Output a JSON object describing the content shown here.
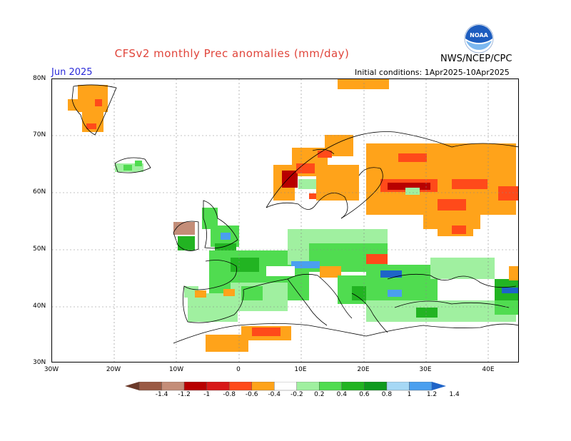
{
  "title": "CFSv2 monthly Prec anomalies (mm/day)",
  "agency": "NWS/NCEP/CPC",
  "logo_text": "NOAA",
  "month": "Jun 2025",
  "initial_conditions": "Initial conditions: 1Apr2025-10Apr2025",
  "lat_labels": [
    "80N",
    "70N",
    "60N",
    "50N",
    "40N",
    "30N"
  ],
  "lon_labels": [
    "30W",
    "20W",
    "10W",
    "0",
    "10E",
    "20E",
    "30E",
    "40E"
  ],
  "colorbar": {
    "labels": [
      "-1.4",
      "-1.2",
      "-1",
      "-0.8",
      "-0.6",
      "-0.4",
      "-0.2",
      "0.2",
      "0.4",
      "0.6",
      "0.8",
      "1",
      "1.2",
      "1.4"
    ],
    "colors": [
      "#6b3a2a",
      "#9a5a44",
      "#c48d78",
      "#b80000",
      "#d81818",
      "#ff4a1a",
      "#ffa31a",
      "#ffffff",
      "#a0f0a0",
      "#50dc50",
      "#22b422",
      "#0f9a1f",
      "#a6d8f5",
      "#4a9fef",
      "#1e64c8"
    ]
  },
  "colors": {
    "title": "#e0443a",
    "month": "#2a2ad8",
    "dry_strong": "#b80000",
    "dry_mid": "#ff4a1a",
    "dry_light": "#ffa31a",
    "wet_light": "#a0f0a0",
    "wet_mid": "#50dc50",
    "wet_strong": "#22b422",
    "wet_blue": "#4a9fef"
  }
}
